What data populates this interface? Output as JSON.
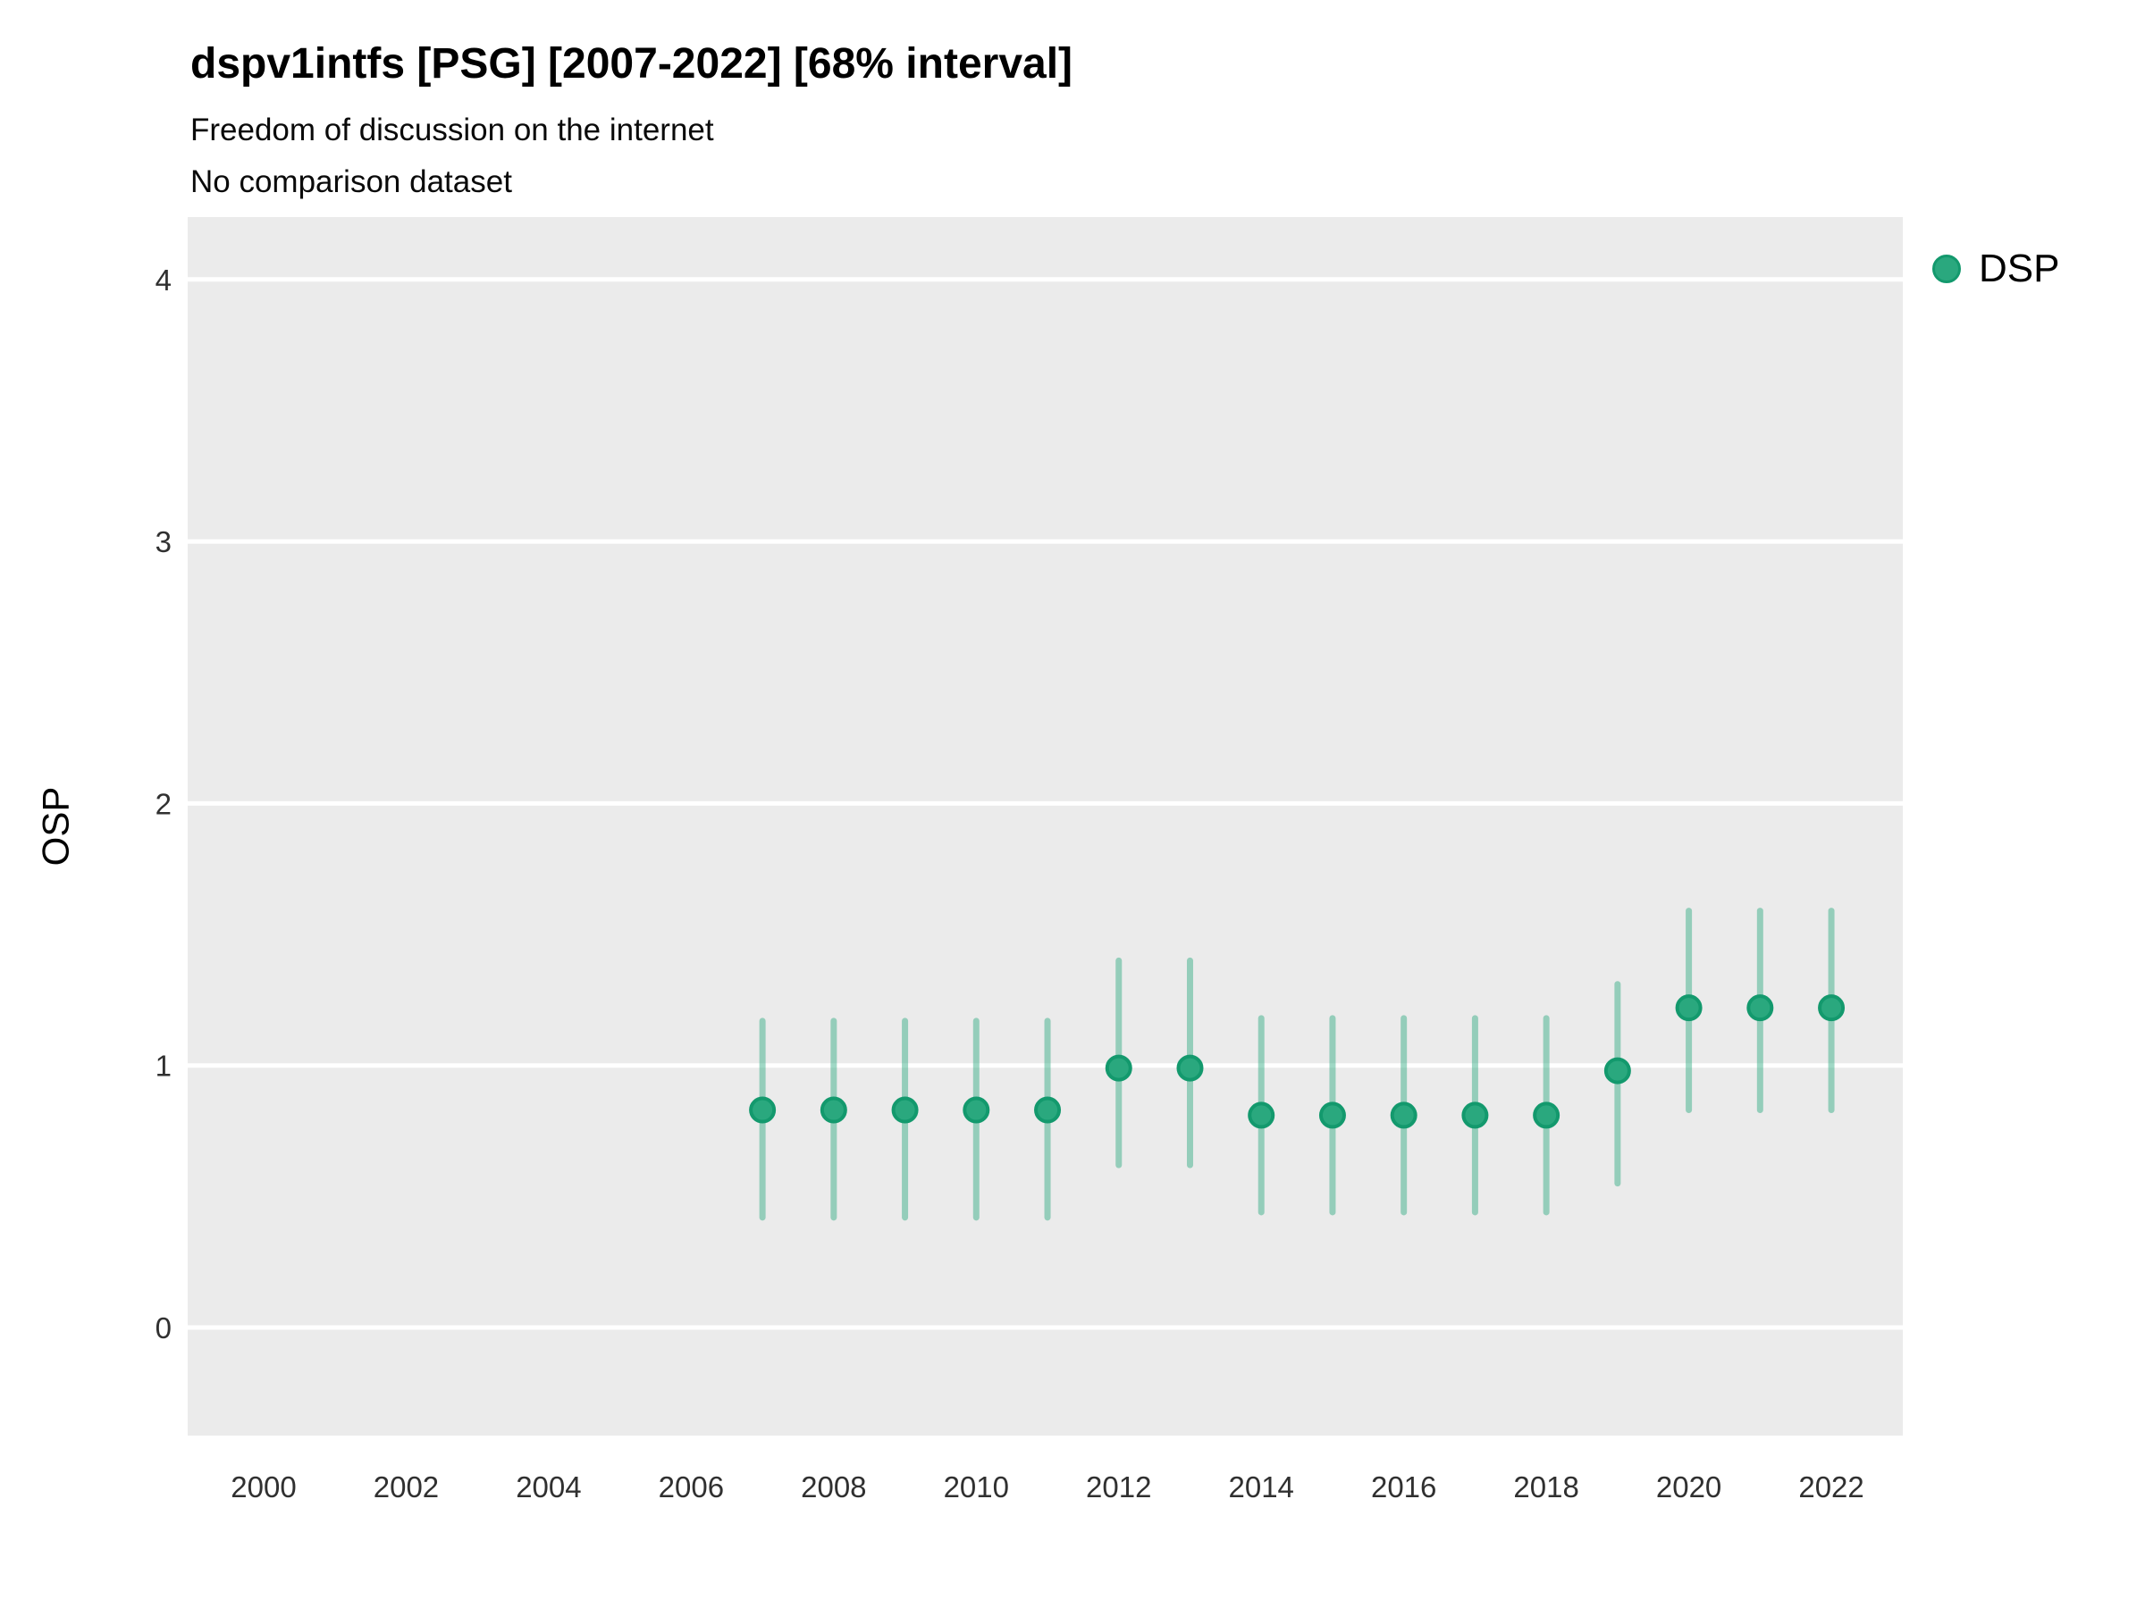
{
  "header": {
    "title": "dspv1intfs [PSG] [2007-2022] [68% interval]",
    "subtitle": "Freedom of discussion on the internet",
    "note": "No comparison dataset"
  },
  "colors": {
    "point_fill": "#2aa87e",
    "point_stroke": "#13996d",
    "interval_stroke": "rgba(42,168,126,0.45)",
    "panel_background": "#ebebeb",
    "gridline": "#ffffff",
    "tick_text": "#303030"
  },
  "legend": {
    "label": "DSP"
  },
  "chart_data": {
    "type": "scatter",
    "subtype": "pointrange",
    "title": "dspv1intfs [PSG] [2007-2022] [68% interval]",
    "subtitle": "Freedom of discussion on the internet",
    "note": "No comparison dataset",
    "xlabel": "",
    "ylabel": "OSP",
    "x_ticks": [
      2000,
      2002,
      2004,
      2006,
      2008,
      2010,
      2012,
      2014,
      2016,
      2018,
      2020,
      2022
    ],
    "y_ticks": [
      0,
      1,
      2,
      3,
      4
    ],
    "xlim": [
      1998.9,
      2023.0
    ],
    "ylim": [
      -0.41,
      4.24
    ],
    "grid": "major-horizontal",
    "legend_position": "right",
    "series": [
      {
        "name": "DSP",
        "points": [
          {
            "year": 2007,
            "est": 0.83,
            "lo": 0.42,
            "hi": 1.17
          },
          {
            "year": 2008,
            "est": 0.83,
            "lo": 0.42,
            "hi": 1.17
          },
          {
            "year": 2009,
            "est": 0.83,
            "lo": 0.42,
            "hi": 1.17
          },
          {
            "year": 2010,
            "est": 0.83,
            "lo": 0.42,
            "hi": 1.17
          },
          {
            "year": 2011,
            "est": 0.83,
            "lo": 0.42,
            "hi": 1.17
          },
          {
            "year": 2012,
            "est": 0.99,
            "lo": 0.62,
            "hi": 1.4
          },
          {
            "year": 2013,
            "est": 0.99,
            "lo": 0.62,
            "hi": 1.4
          },
          {
            "year": 2014,
            "est": 0.81,
            "lo": 0.44,
            "hi": 1.18
          },
          {
            "year": 2015,
            "est": 0.81,
            "lo": 0.44,
            "hi": 1.18
          },
          {
            "year": 2016,
            "est": 0.81,
            "lo": 0.44,
            "hi": 1.18
          },
          {
            "year": 2017,
            "est": 0.81,
            "lo": 0.44,
            "hi": 1.18
          },
          {
            "year": 2018,
            "est": 0.81,
            "lo": 0.44,
            "hi": 1.18
          },
          {
            "year": 2019,
            "est": 0.98,
            "lo": 0.55,
            "hi": 1.31
          },
          {
            "year": 2020,
            "est": 1.22,
            "lo": 0.83,
            "hi": 1.59
          },
          {
            "year": 2021,
            "est": 1.22,
            "lo": 0.83,
            "hi": 1.59
          },
          {
            "year": 2022,
            "est": 1.22,
            "lo": 0.83,
            "hi": 1.59
          }
        ]
      }
    ]
  }
}
